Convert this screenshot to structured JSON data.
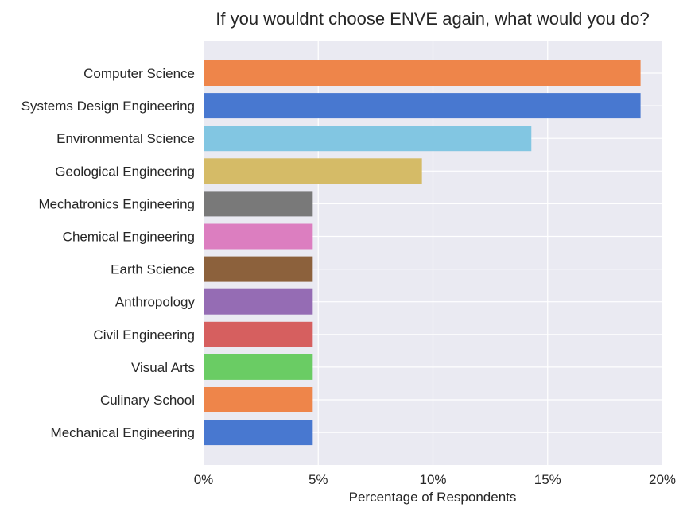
{
  "chart_data": {
    "type": "bar",
    "orientation": "horizontal",
    "title": "If you wouldnt choose ENVE again, what would you do?",
    "xlabel": "Percentage of Respondents",
    "ylabel": "",
    "xlim": [
      0,
      20
    ],
    "xticks": [
      0,
      5,
      10,
      15,
      20
    ],
    "xtick_labels": [
      "0%",
      "5%",
      "10%",
      "15%",
      "20%"
    ],
    "grid": true,
    "legend": "none",
    "categories": [
      "Computer Science",
      "Systems Design Engineering",
      "Environmental Science",
      "Geological Engineering",
      "Mechatronics Engineering",
      "Chemical Engineering ",
      "Earth Science",
      "Anthropology",
      "Civil Engineering",
      "Visual Arts",
      "Culinary School",
      "Mechanical Engineering "
    ],
    "values": [
      19.05,
      19.05,
      14.29,
      9.52,
      4.76,
      4.76,
      4.76,
      4.76,
      4.76,
      4.76,
      4.76,
      4.76
    ],
    "colors": [
      "#ee854a",
      "#4878d0",
      "#82c6e2",
      "#d5bb67",
      "#797979",
      "#dc7ec0",
      "#8c613c",
      "#956cb4",
      "#d65f5f",
      "#6acc64",
      "#ee854a",
      "#4878d0"
    ],
    "background_color": "#eaeaf2",
    "grid_color": "#ffffff"
  }
}
